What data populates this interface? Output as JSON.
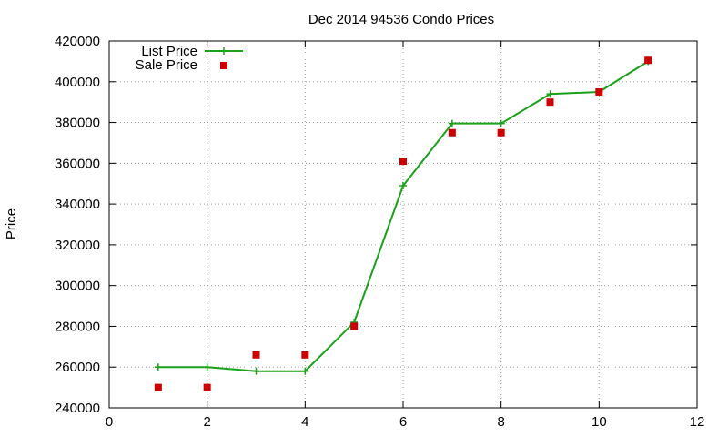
{
  "chart_data": {
    "type": "line",
    "title": "Dec 2014 94536 Condo Prices",
    "xlabel": "",
    "ylabel": "Price",
    "xlim": [
      0,
      12
    ],
    "ylim": [
      240000,
      420000
    ],
    "xticks": [
      0,
      2,
      4,
      6,
      8,
      10,
      12
    ],
    "yticks": [
      240000,
      260000,
      280000,
      300000,
      320000,
      340000,
      360000,
      380000,
      400000,
      420000
    ],
    "grid": true,
    "legend_position": "top-left",
    "series": [
      {
        "name": "List Price",
        "style": "line+crosses",
        "color": "#1aa01a",
        "x": [
          1,
          2,
          3,
          4,
          5,
          6,
          7,
          8,
          9,
          10,
          11
        ],
        "y": [
          260000,
          260000,
          258000,
          258000,
          282000,
          349000,
          379500,
          379500,
          394000,
          395000,
          410000
        ]
      },
      {
        "name": "Sale Price",
        "style": "squares",
        "color": "#cc0000",
        "x": [
          1,
          2,
          3,
          4,
          5,
          6,
          7,
          8,
          9,
          10,
          11
        ],
        "y": [
          250000,
          250000,
          266000,
          266000,
          280000,
          361000,
          375000,
          375000,
          390000,
          395000,
          410500
        ]
      }
    ]
  }
}
